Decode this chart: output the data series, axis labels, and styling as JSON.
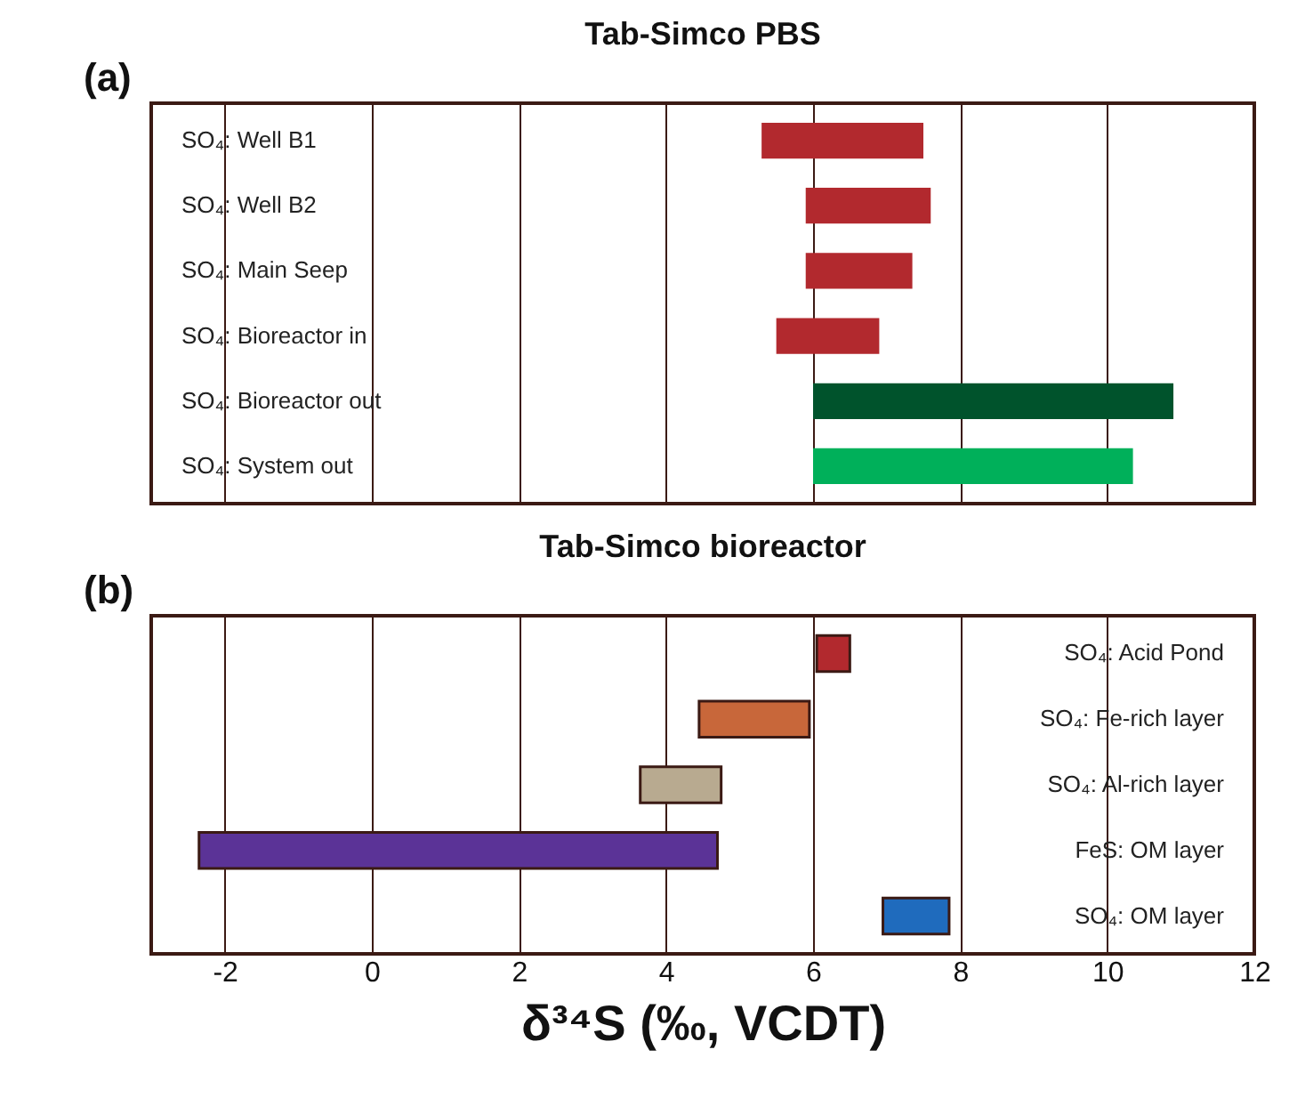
{
  "chart_data": [
    {
      "type": "bar",
      "orientation": "horizontal",
      "title": "Tab-Simco PBS",
      "annotations": [
        "(a)"
      ],
      "categories": [
        "SO₄: Well B1",
        "SO₄: Well B2",
        "SO₄: Main Seep",
        "SO₄: Bioreactor in",
        "SO₄: Bioreactor out",
        "SO₄: System out"
      ],
      "base": [
        5.3,
        5.9,
        5.9,
        5.5,
        6.0,
        6.0
      ],
      "values": [
        2.2,
        1.7,
        1.45,
        1.4,
        4.9,
        4.35
      ],
      "colors": [
        "#b2292e",
        "#b2292e",
        "#b2292e",
        "#b2292e",
        "#00532c",
        "#00b05a"
      ],
      "xlim": [
        -3,
        12
      ],
      "xticks": [
        -2,
        0,
        2,
        4,
        6,
        8,
        10,
        12
      ],
      "grid": "x",
      "tick_labels": "y"
    },
    {
      "type": "bar",
      "orientation": "horizontal",
      "title": "Tab-Simco bioreactor",
      "annotations": [
        "(b)"
      ],
      "xlabel": "δ³⁴S (‰, VCDT)",
      "categories": [
        "SO₄: Acid Pond",
        "SO₄: Fe-rich layer",
        "SO₄: Al-rich layer",
        "FeS: OM layer",
        "SO₄: OM layer"
      ],
      "base": [
        6.05,
        4.45,
        3.65,
        -2.35,
        6.95
      ],
      "values": [
        0.45,
        1.5,
        1.1,
        7.05,
        0.9
      ],
      "colors": [
        "#b2292e",
        "#c8673a",
        "#b8aa90",
        "#5b3397",
        "#1f6bbd"
      ],
      "xlim": [
        -3,
        12
      ],
      "xticks": [
        -2,
        0,
        2,
        4,
        6,
        8,
        10,
        12
      ],
      "grid": "x"
    }
  ]
}
